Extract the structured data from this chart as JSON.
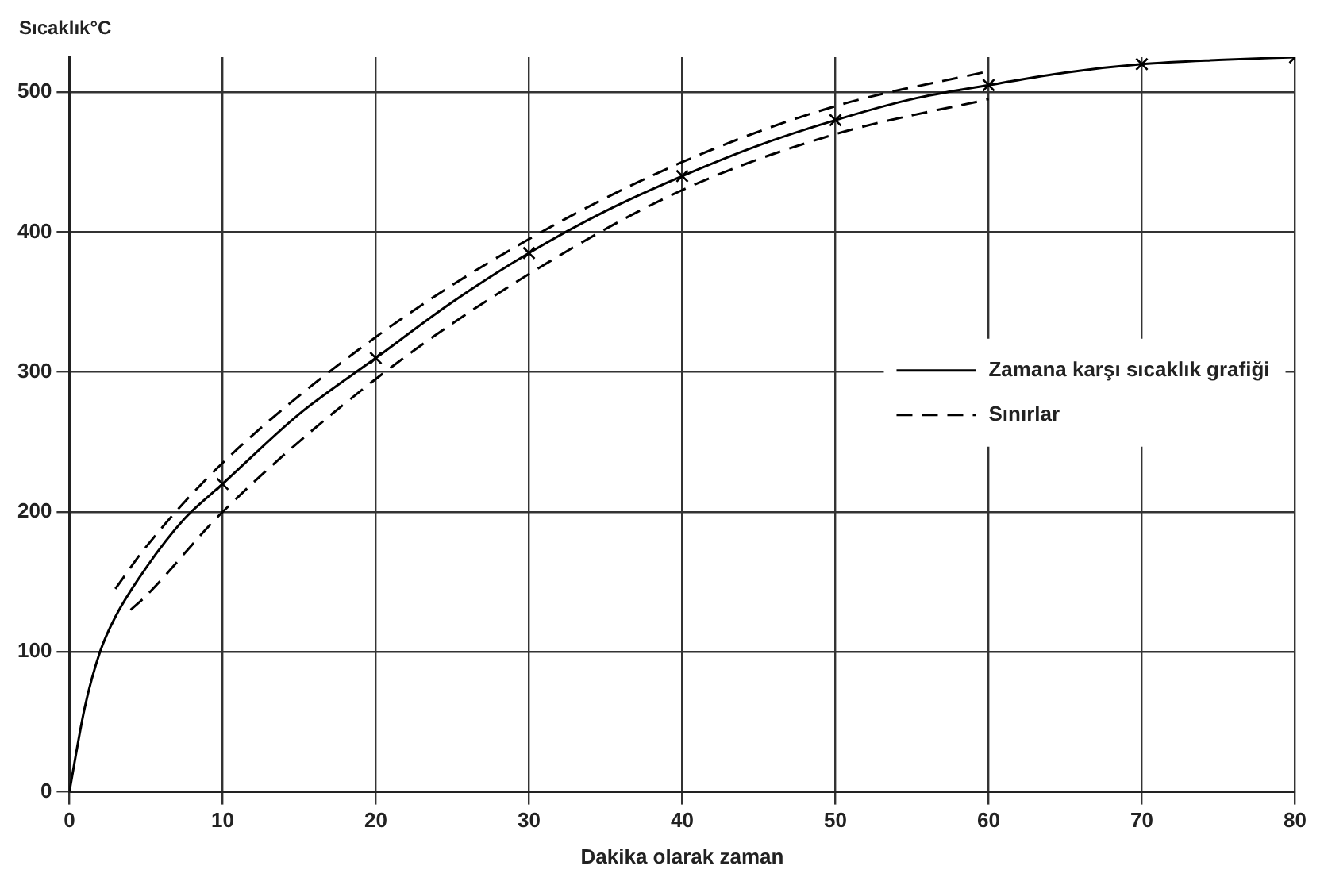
{
  "chart_data": {
    "type": "line",
    "xlabel": "Dakika olarak zaman",
    "ylabel": "Sıcaklık°C",
    "xlim": [
      0,
      80
    ],
    "xticks": [
      0,
      10,
      20,
      30,
      40,
      50,
      60,
      70,
      80
    ],
    "ylim": [
      0,
      525
    ],
    "yticks": [
      0,
      100,
      200,
      300,
      400,
      500
    ],
    "grid": true,
    "legend": "right",
    "series": [
      {
        "name": "Zamana karşı sıcaklık grafiği",
        "color": "#000000",
        "line_style": "solid",
        "x": [
          0,
          1,
          2,
          3,
          5,
          7.5,
          10,
          15,
          20,
          25,
          30,
          35,
          40,
          45,
          50,
          55,
          60,
          65,
          70,
          75,
          80
        ],
        "values": [
          0,
          60,
          100,
          125,
          160,
          195,
          220,
          270,
          310,
          350,
          385,
          415,
          440,
          462,
          480,
          495,
          505,
          514,
          520,
          523,
          525
        ]
      },
      {
        "name": "Sınırlar",
        "color": "#000000",
        "line_style": "dashed",
        "x": [
          3,
          5,
          10,
          20,
          30,
          40,
          50,
          60
        ],
        "values": [
          145,
          175,
          235,
          325,
          395,
          450,
          490,
          515
        ]
      },
      {
        "color": "#000000",
        "line_style": "dashed",
        "x": [
          4,
          5,
          10,
          20,
          30,
          40,
          50,
          60
        ],
        "values": [
          130,
          140,
          200,
          295,
          370,
          430,
          470,
          495
        ]
      },
      {
        "type": "scatter",
        "marker": "cross",
        "color": "#000000",
        "x": [
          10,
          20,
          30,
          40,
          50,
          60,
          70,
          80
        ],
        "values": [
          220,
          310,
          385,
          440,
          480,
          505,
          520,
          525
        ]
      }
    ]
  }
}
